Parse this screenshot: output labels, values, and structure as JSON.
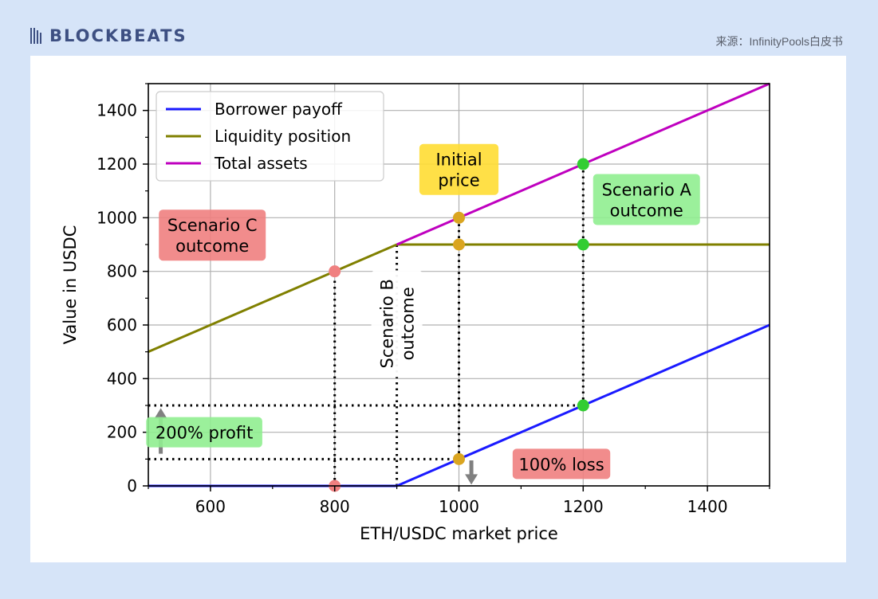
{
  "header": {
    "logo_text": "BLOCKBEATS",
    "source": "来源：InfinityPools白皮书"
  },
  "colors": {
    "borrower": "#1a1aff",
    "liquidity": "#808000",
    "total": "#bf00bf",
    "orange_dot": "#daa520",
    "green_dot": "#32cd32",
    "red_dot": "#f08080",
    "yellow_box": "#ffdd33",
    "green_box": "#90ee90",
    "red_box": "#f08080",
    "arrow": "#808080"
  },
  "chart_data": {
    "type": "line",
    "title": "",
    "xlabel": "ETH/USDC market price",
    "ylabel": "Value in USDC",
    "xlim": [
      500,
      1500
    ],
    "ylim": [
      0,
      1500
    ],
    "x_ticks": [
      600,
      800,
      1000,
      1200,
      1400
    ],
    "y_ticks": [
      0,
      200,
      400,
      600,
      800,
      1000,
      1200,
      1400
    ],
    "grid": true,
    "legend_position": "top-left",
    "series": [
      {
        "name": "Borrower payoff",
        "color_key": "borrower",
        "x": [
          500,
          900,
          1500
        ],
        "y": [
          0,
          0,
          600
        ]
      },
      {
        "name": "Liquidity position",
        "color_key": "liquidity",
        "x": [
          500,
          900,
          1500
        ],
        "y": [
          500,
          900,
          900
        ]
      },
      {
        "name": "Total assets",
        "color_key": "total",
        "x": [
          900,
          1500
        ],
        "y": [
          900,
          1500
        ]
      }
    ],
    "points": [
      {
        "x": 1000,
        "y": 1000,
        "color_key": "orange_dot"
      },
      {
        "x": 1000,
        "y": 900,
        "color_key": "orange_dot"
      },
      {
        "x": 1000,
        "y": 100,
        "color_key": "orange_dot"
      },
      {
        "x": 1200,
        "y": 1200,
        "color_key": "green_dot"
      },
      {
        "x": 1200,
        "y": 900,
        "color_key": "green_dot"
      },
      {
        "x": 1200,
        "y": 300,
        "color_key": "green_dot"
      },
      {
        "x": 800,
        "y": 800,
        "color_key": "red_dot"
      },
      {
        "x": 800,
        "y": 0,
        "color_key": "red_dot"
      }
    ],
    "guides": [
      {
        "x": [
          800,
          800
        ],
        "y": [
          0,
          800
        ]
      },
      {
        "x": [
          900,
          900
        ],
        "y": [
          0,
          900
        ]
      },
      {
        "x": [
          1000,
          1000
        ],
        "y": [
          100,
          1000
        ]
      },
      {
        "x": [
          1200,
          1200
        ],
        "y": [
          300,
          1200
        ]
      },
      {
        "x": [
          500,
          1200
        ],
        "y": [
          300,
          300
        ]
      },
      {
        "x": [
          500,
          1000
        ],
        "y": [
          100,
          100
        ]
      }
    ],
    "annotations": [
      {
        "lines": [
          "Initial",
          "price"
        ],
        "cx": 1000,
        "cy": 1180,
        "color_key": "yellow_box",
        "rotate": false
      },
      {
        "lines": [
          "Scenario A",
          "outcome"
        ],
        "cx": 1302,
        "cy": 1068,
        "color_key": "green_box",
        "rotate": false
      },
      {
        "lines": [
          "Scenario C",
          "outcome"
        ],
        "cx": 603,
        "cy": 935,
        "color_key": "red_box",
        "rotate": false
      },
      {
        "lines": [
          "Scenario B",
          "outcome"
        ],
        "cx": 900,
        "cy": 605,
        "color_key": "",
        "rotate": true
      },
      {
        "lines": [
          "200% profit"
        ],
        "cx": 590,
        "cy": 200,
        "color_key": "green_box",
        "rotate": false
      },
      {
        "lines": [
          "100% loss"
        ],
        "cx": 1165,
        "cy": 82,
        "color_key": "red_box",
        "rotate": false
      }
    ],
    "arrows": [
      {
        "x": 520,
        "y_from": 120,
        "y_to": 290,
        "direction": "up"
      },
      {
        "x": 1020,
        "y_from": 95,
        "y_to": 5,
        "direction": "down"
      }
    ]
  }
}
